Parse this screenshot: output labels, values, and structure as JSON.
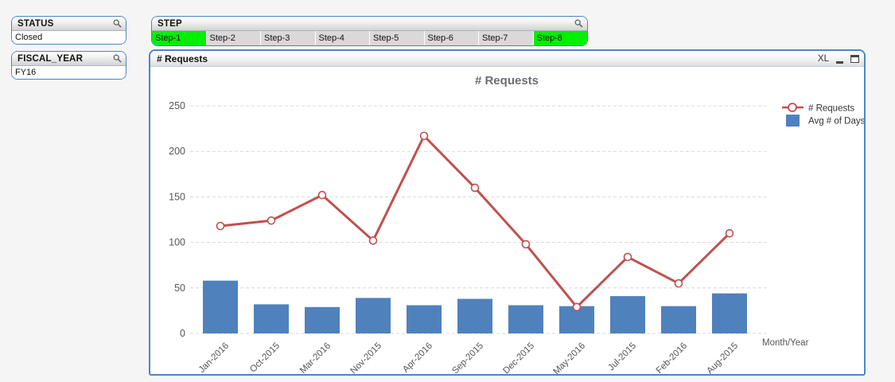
{
  "filters": {
    "status": {
      "title": "STATUS",
      "selected_value": "Closed"
    },
    "fiscal_year": {
      "title": "FISCAL_YEAR",
      "selected_value": "FY16"
    },
    "step": {
      "title": "STEP",
      "items": [
        {
          "label": "Step-1",
          "selected": true
        },
        {
          "label": "Step-2",
          "selected": false
        },
        {
          "label": "Step-3",
          "selected": false
        },
        {
          "label": "Step-4",
          "selected": false
        },
        {
          "label": "Step-5",
          "selected": false
        },
        {
          "label": "Step-6",
          "selected": false
        },
        {
          "label": "Step-7",
          "selected": false
        },
        {
          "label": "Step-8",
          "selected": true
        }
      ]
    }
  },
  "chart_window": {
    "title": "# Requests",
    "xl_label": "XL"
  },
  "chart_data": {
    "type": "combo",
    "title": "# Requests",
    "categories": [
      "Jan-2016",
      "Oct-2015",
      "Mar-2016",
      "Nov-2015",
      "Apr-2016",
      "Sep-2015",
      "Dec-2015",
      "May-2016",
      "Jul-2015",
      "Feb-2016",
      "Aug-2015"
    ],
    "series": [
      {
        "name": "# Requests",
        "type": "line",
        "color": "#c0504d",
        "values": [
          118,
          124,
          152,
          102,
          217,
          160,
          98,
          29,
          84,
          55,
          110
        ]
      },
      {
        "name": "Avg # of Days",
        "type": "bar",
        "color": "#4f81bd",
        "values": [
          58,
          32,
          29,
          39,
          31,
          38,
          31,
          30,
          41,
          30,
          44
        ]
      }
    ],
    "xlabel": "Month/Year",
    "ylim": [
      0,
      250
    ],
    "ytick_step": 50,
    "grid": true,
    "legend_position": "top-right"
  },
  "colors": {
    "selected_green": "#00f000",
    "cell_gray": "#d9d9d9",
    "box_border": "#4a85c4",
    "grid": "#d8d8d8",
    "axis_text": "#555555",
    "chart_title": "#6e6e6e"
  }
}
